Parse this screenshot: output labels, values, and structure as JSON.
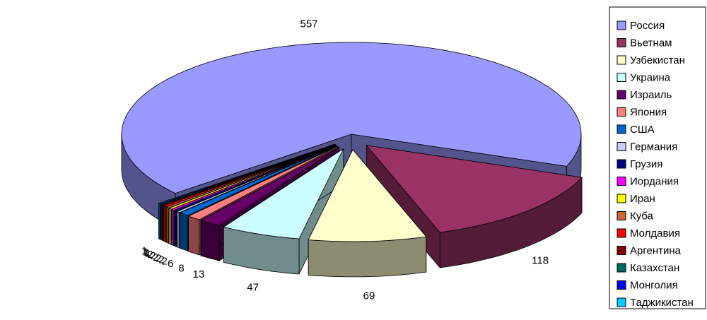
{
  "chart_data": {
    "type": "pie",
    "categories": [
      "Россия",
      "Вьетнам",
      "Узбекистан",
      "Украина",
      "Израиль",
      "Япония",
      "США",
      "Германия",
      "Грузия",
      "Иордания",
      "Иран",
      "Куба",
      "Молдавия",
      "Аргентина",
      "Казахстан",
      "Монголия",
      "Таджикистан"
    ],
    "values": [
      557,
      118,
      69,
      47,
      13,
      8,
      6,
      2,
      2,
      2,
      2,
      2,
      2,
      1,
      1,
      1,
      1
    ],
    "colors": [
      "#9999ff",
      "#993366",
      "#ffffcc",
      "#ccffff",
      "#660066",
      "#ff8080",
      "#0066cc",
      "#ccccff",
      "#000080",
      "#ff00ff",
      "#ffff00",
      "#cc6633",
      "#ff0000",
      "#800000",
      "#006666",
      "#0000ff",
      "#00ccff"
    ],
    "legend": "right"
  }
}
